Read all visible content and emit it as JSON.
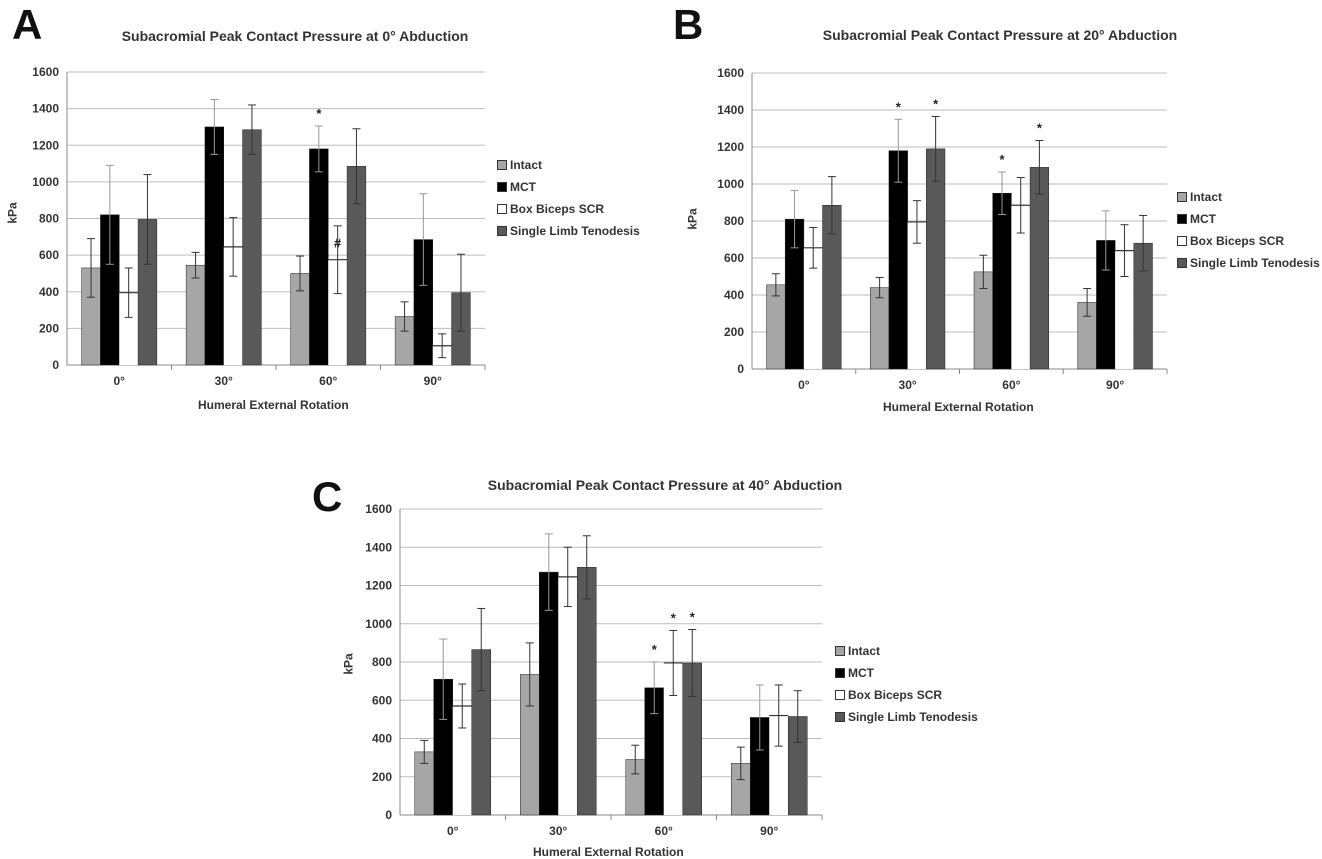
{
  "panels": [
    {
      "letter": "A"
    },
    {
      "letter": "B"
    },
    {
      "letter": "C"
    }
  ],
  "legend": [
    "Intact",
    "MCT",
    "Box Biceps SCR",
    "Single Limb Tenodesis"
  ],
  "colors": {
    "Intact": "#a6a6a6",
    "MCT": "#000000",
    "Box Biceps SCR": "#ffffff",
    "Single Limb Tenodesis": "#595959"
  },
  "chart_data": [
    {
      "type": "bar",
      "title": "Subacromial Peak Contact Pressure at 0° Abduction",
      "xlabel": "Humeral External Rotation",
      "ylabel": "kPa",
      "ylim": [
        0,
        1600
      ],
      "yticks": [
        "0",
        "200",
        "400",
        "600",
        "800",
        "1000",
        "1200",
        "1400",
        "1600"
      ],
      "categories": [
        "0°",
        "30°",
        "60°",
        "90°"
      ],
      "grid": true,
      "legend_position": "right",
      "series": [
        {
          "name": "Intact",
          "values": [
            530,
            545,
            500,
            265
          ],
          "errors": [
            160,
            70,
            95,
            80
          ]
        },
        {
          "name": "MCT",
          "values": [
            820,
            1300,
            1180,
            685
          ],
          "errors": [
            270,
            150,
            125,
            250
          ]
        },
        {
          "name": "Box Biceps SCR",
          "values": [
            395,
            645,
            575,
            105
          ],
          "errors": [
            135,
            160,
            185,
            65
          ]
        },
        {
          "name": "Single Limb Tenodesis",
          "values": [
            795,
            1285,
            1085,
            395
          ],
          "errors": [
            245,
            135,
            205,
            210
          ]
        }
      ],
      "annotations": [
        {
          "text": "*",
          "category": 2,
          "series": 1
        },
        {
          "text": "#",
          "category": 2,
          "series": 2
        }
      ]
    },
    {
      "type": "bar",
      "title": "Subacromial Peak Contact Pressure at 20° Abduction",
      "xlabel": "Humeral External Rotation",
      "ylabel": "kPa",
      "ylim": [
        0,
        1600
      ],
      "yticks": [
        "0",
        "200",
        "400",
        "600",
        "800",
        "1000",
        "1200",
        "1400",
        "1600"
      ],
      "categories": [
        "0°",
        "30°",
        "60°",
        "90°"
      ],
      "grid": true,
      "legend_position": "right",
      "series": [
        {
          "name": "Intact",
          "values": [
            455,
            440,
            525,
            360
          ],
          "errors": [
            60,
            55,
            90,
            75
          ]
        },
        {
          "name": "MCT",
          "values": [
            810,
            1180,
            950,
            695
          ],
          "errors": [
            155,
            170,
            115,
            160
          ]
        },
        {
          "name": "Box Biceps SCR",
          "values": [
            655,
            795,
            885,
            640
          ],
          "errors": [
            110,
            115,
            150,
            140
          ]
        },
        {
          "name": "Single Limb Tenodesis",
          "values": [
            885,
            1190,
            1090,
            680
          ],
          "errors": [
            155,
            175,
            145,
            150
          ]
        }
      ],
      "annotations": [
        {
          "text": "*",
          "category": 1,
          "series": 1
        },
        {
          "text": "*",
          "category": 1,
          "series": 3
        },
        {
          "text": "*",
          "category": 2,
          "series": 1
        },
        {
          "text": "*",
          "category": 2,
          "series": 3
        }
      ]
    },
    {
      "type": "bar",
      "title": "Subacromial Peak Contact Pressure at 40° Abduction",
      "xlabel": "Humeral External Rotation",
      "ylabel": "kPa",
      "ylim": [
        0,
        1600
      ],
      "yticks": [
        "0",
        "200",
        "400",
        "600",
        "800",
        "1000",
        "1200",
        "1400",
        "1600"
      ],
      "categories": [
        "0°",
        "30°",
        "60°",
        "90°"
      ],
      "grid": true,
      "legend_position": "right",
      "series": [
        {
          "name": "Intact",
          "values": [
            330,
            735,
            290,
            270
          ],
          "errors": [
            60,
            165,
            75,
            85
          ]
        },
        {
          "name": "MCT",
          "values": [
            710,
            1270,
            665,
            510
          ],
          "errors": [
            210,
            200,
            135,
            170
          ]
        },
        {
          "name": "Box Biceps SCR",
          "values": [
            570,
            1245,
            795,
            520
          ],
          "errors": [
            115,
            155,
            170,
            160
          ]
        },
        {
          "name": "Single Limb Tenodesis",
          "values": [
            865,
            1295,
            795,
            515
          ],
          "errors": [
            215,
            165,
            175,
            135
          ]
        }
      ],
      "annotations": [
        {
          "text": "*",
          "category": 2,
          "series": 1
        },
        {
          "text": "*",
          "category": 2,
          "series": 2
        },
        {
          "text": "*",
          "category": 2,
          "series": 3
        }
      ]
    }
  ]
}
